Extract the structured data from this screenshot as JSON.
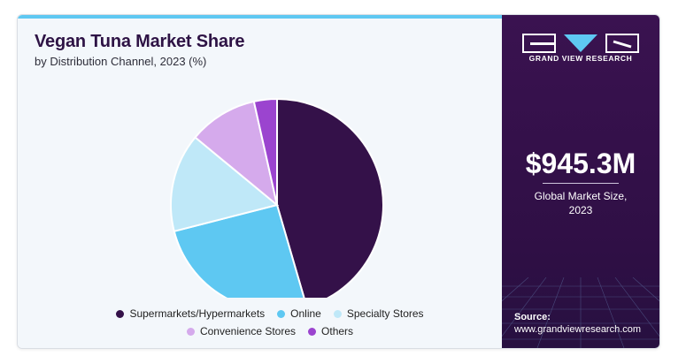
{
  "header": {
    "title": "Vegan Tuna Market Share",
    "subtitle": "by Distribution Channel, 2023 (%)"
  },
  "brand": {
    "name": "GRAND VIEW RESEARCH",
    "logo_icon": "gvr-logo-icon",
    "accent": "#5ec8f2",
    "panel_color": "#341149"
  },
  "stat": {
    "value": "$945.3M",
    "label_line1": "Global Market Size,",
    "label_line2": "2023"
  },
  "source": {
    "label": "Source:",
    "url": "www.grandviewresearch.com"
  },
  "chart_data": {
    "type": "pie",
    "title": "Vegan Tuna Market Share",
    "subtitle": "by Distribution Channel, 2023 (%)",
    "legend_position": "bottom",
    "slices": [
      {
        "label": "Supermarkets/Hypermarkets",
        "value": 45.5,
        "color": "#341149"
      },
      {
        "label": "Online",
        "value": 25.5,
        "color": "#5ec8f2"
      },
      {
        "label": "Specialty Stores",
        "value": 15.0,
        "color": "#bfe8f8"
      },
      {
        "label": "Convenience Stores",
        "value": 10.5,
        "color": "#d5aaec"
      },
      {
        "label": "Others",
        "value": 3.5,
        "color": "#9b44cf"
      }
    ]
  }
}
